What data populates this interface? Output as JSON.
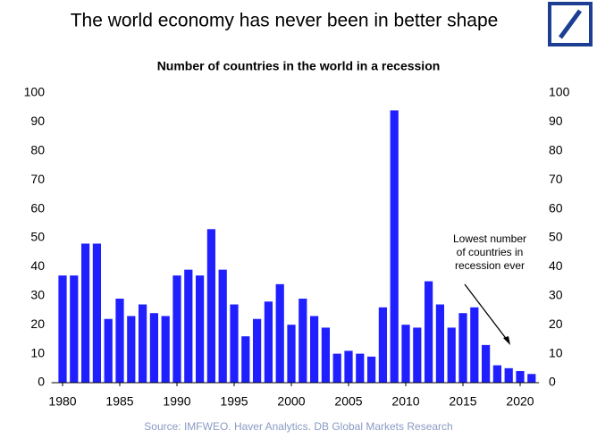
{
  "chart_data": {
    "type": "bar",
    "title": "The world economy has never been in better shape",
    "subtitle": "Number of countries in the world in a recession",
    "source": "Source: IMFWEO. Haver Analytics. DB Global Markets Research",
    "annotation": [
      "Lowest number",
      "of countries in",
      "recession ever"
    ],
    "x": [
      1980,
      1981,
      1982,
      1983,
      1984,
      1985,
      1986,
      1987,
      1988,
      1989,
      1990,
      1991,
      1992,
      1993,
      1994,
      1995,
      1996,
      1997,
      1998,
      1999,
      2000,
      2001,
      2002,
      2003,
      2004,
      2005,
      2006,
      2007,
      2008,
      2009,
      2010,
      2011,
      2012,
      2013,
      2014,
      2015,
      2016,
      2017,
      2018,
      2019,
      2020,
      2021
    ],
    "values": [
      37,
      37,
      48,
      48,
      22,
      29,
      23,
      27,
      24,
      23,
      37,
      39,
      37,
      53,
      39,
      27,
      16,
      22,
      28,
      34,
      20,
      29,
      23,
      19,
      10,
      11,
      10,
      9,
      26,
      94,
      20,
      19,
      35,
      27,
      19,
      24,
      26,
      13,
      6,
      5,
      4,
      3
    ],
    "color": "#1f1fff",
    "xlim": [
      1979.5,
      2021.5
    ],
    "xticks": [
      1980,
      1985,
      1990,
      1995,
      2000,
      2005,
      2010,
      2015,
      2020
    ],
    "ylim": [
      0,
      100
    ],
    "yticks": [
      0,
      10,
      20,
      30,
      40,
      50,
      60,
      70,
      80,
      90,
      100
    ],
    "y2lim": [
      0,
      100
    ],
    "y2ticks": [
      0,
      10,
      20,
      30,
      40,
      50,
      60,
      70,
      80,
      90,
      100
    ]
  }
}
